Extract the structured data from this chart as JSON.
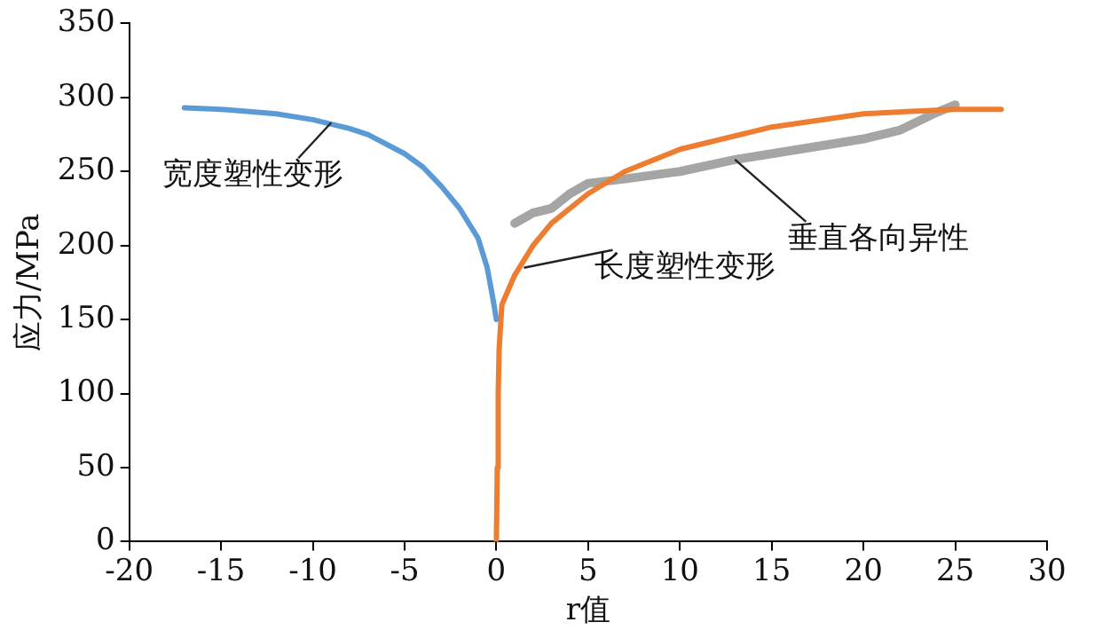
{
  "chart_data": {
    "type": "line",
    "xlabel": "r值",
    "ylabel": "应力/MPa",
    "xlim": [
      -20,
      30
    ],
    "xticks": [
      -20,
      -15,
      -10,
      -5,
      0,
      5,
      10,
      15,
      20,
      25,
      30
    ],
    "ylim": [
      0,
      350
    ],
    "yticks": [
      0,
      50,
      100,
      150,
      200,
      250,
      300,
      350
    ],
    "grid": false,
    "legend": false,
    "marker": "none",
    "line_style": "solid",
    "series": [
      {
        "color": "#5b9bd5",
        "x": [
          -17,
          -15,
          -12,
          -10,
          -8,
          -7,
          -5,
          -4,
          -3,
          -2,
          -1,
          -0.5,
          -0.2,
          0
        ],
        "values": [
          293,
          292,
          289,
          285,
          279,
          275,
          262,
          253,
          240,
          225,
          205,
          185,
          165,
          150
        ]
      },
      {
        "color": "#ed7d31",
        "x": [
          0,
          0.05,
          0.1,
          0.15,
          0.3,
          1,
          2,
          3,
          5,
          7,
          10,
          15,
          20,
          25,
          27.5
        ],
        "values": [
          0,
          50,
          100,
          130,
          160,
          180,
          200,
          215,
          235,
          250,
          265,
          280,
          289,
          292,
          292
        ]
      },
      {
        "color": "#a5a5a5",
        "x": [
          1,
          2,
          3,
          4,
          5,
          7,
          10,
          13,
          15,
          18,
          20,
          22,
          24,
          25
        ],
        "values": [
          215,
          222,
          225,
          235,
          242,
          245,
          250,
          258,
          262,
          268,
          272,
          278,
          290,
          295
        ]
      }
    ],
    "annotations": [
      {
        "text": "宽度塑性变形",
        "x": -9,
        "y": 283
      },
      {
        "text": "长度塑性变形",
        "x": 1.5,
        "y": 185
      },
      {
        "text": "垂直各向异性",
        "x": 13,
        "y": 258
      }
    ]
  }
}
